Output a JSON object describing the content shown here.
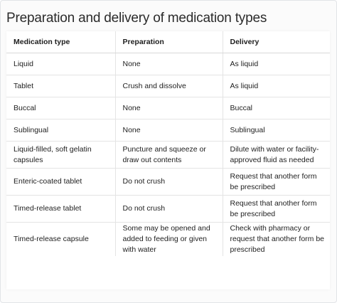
{
  "title": "Preparation and delivery of medication types",
  "table": {
    "headers": [
      "Medication type",
      "Preparation",
      "Delivery"
    ],
    "rows": [
      [
        "Liquid",
        "None",
        "As liquid"
      ],
      [
        "Tablet",
        "Crush and dissolve",
        "As liquid"
      ],
      [
        "Buccal",
        "None",
        "Buccal"
      ],
      [
        "Sublingual",
        "None",
        "Sublingual"
      ],
      [
        "Liquid-filled, soft gelatin capsules",
        "Puncture and squeeze or draw out contents",
        "Dilute with water or facility-approved fluid as needed"
      ],
      [
        "Enteric-coated tablet",
        "Do not crush",
        "Request that another form be prescribed"
      ],
      [
        "Timed-release tablet",
        "Do not crush",
        "Request that another form be prescribed"
      ],
      [
        "Timed-release capsule",
        "Some may be opened and added to feeding or given with water",
        "Check with pharmacy or request that another form be prescribed"
      ]
    ]
  }
}
